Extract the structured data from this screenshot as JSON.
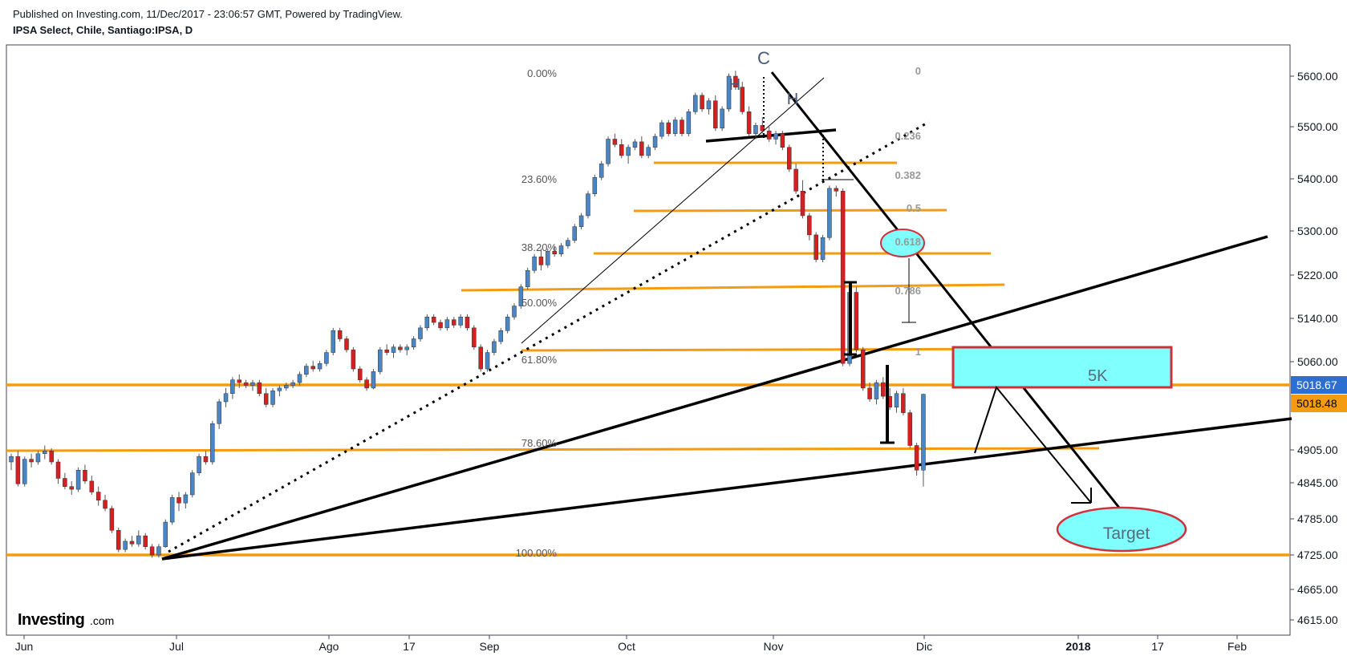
{
  "header": {
    "published": "Published on Investing.com, 11/Dec/2017 - 23:06:57 GMT, Powered by TradingView.",
    "symbol": "IPSA Select, Chile, Santiago:IPSA, D"
  },
  "brand": {
    "name": "Investing",
    "suffix": ".com"
  },
  "colors": {
    "up": "#4a86c5",
    "down": "#d42020",
    "orange": "#f39c12",
    "cyan": "#80ffff",
    "red_border": "#d0303a",
    "blue_label": "#2d6fd1",
    "orange_label": "#f39c12"
  },
  "price_axis": {
    "ticks": [
      {
        "label": "5600.00",
        "value": 5600
      },
      {
        "label": "5500.00",
        "value": 5500
      },
      {
        "label": "5400.00",
        "value": 5400
      },
      {
        "label": "5300.00",
        "value": 5300
      },
      {
        "label": "5220.00",
        "value": 5220
      },
      {
        "label": "5140.00",
        "value": 5140
      },
      {
        "label": "5060.00",
        "value": 5060
      },
      {
        "label": "4905.00",
        "value": 4905
      },
      {
        "label": "4845.00",
        "value": 4845
      },
      {
        "label": "4785.00",
        "value": 4785
      },
      {
        "label": "4725.00",
        "value": 4725
      },
      {
        "label": "4665.00",
        "value": 4665
      },
      {
        "label": "4615.00",
        "value": 4615
      }
    ],
    "last_price_label": "5018.67",
    "prev_price_label": "5018.48"
  },
  "time_axis": {
    "ticks": [
      {
        "label": "Jun",
        "bold": false
      },
      {
        "label": "Jul",
        "bold": false
      },
      {
        "label": "Ago",
        "bold": false
      },
      {
        "label": "17",
        "bold": false
      },
      {
        "label": "Sep",
        "bold": false
      },
      {
        "label": "Oct",
        "bold": false
      },
      {
        "label": "Nov",
        "bold": false
      },
      {
        "label": "Dic",
        "bold": false
      },
      {
        "label": "2018",
        "bold": true
      },
      {
        "label": "17",
        "bold": false
      },
      {
        "label": "Feb",
        "bold": false
      }
    ]
  },
  "fib_left": [
    "0.00%",
    "23.60%",
    "38.20%",
    "50.00%",
    "61.80%",
    "78.60%",
    "100.00%"
  ],
  "fib_right": [
    "0",
    "0.236",
    "0.382",
    "0.5",
    "0.618",
    "0.786",
    "1"
  ],
  "annotations": {
    "c": "C",
    "h1": "H",
    "h2": "H",
    "box": "5K",
    "target": "Target"
  },
  "chart_data": {
    "type": "candlestick",
    "title": "IPSA Select, Chile, Santiago:IPSA, D",
    "ylim": [
      4600,
      5640
    ],
    "ohlc": [
      [
        4895,
        4910,
        4880,
        4905
      ],
      [
        4905,
        4915,
        4850,
        4855
      ],
      [
        4855,
        4905,
        4850,
        4900
      ],
      [
        4900,
        4910,
        4885,
        4895
      ],
      [
        4895,
        4915,
        4890,
        4910
      ],
      [
        4910,
        4925,
        4900,
        4915
      ],
      [
        4915,
        4920,
        4890,
        4895
      ],
      [
        4895,
        4900,
        4855,
        4865
      ],
      [
        4865,
        4875,
        4845,
        4850
      ],
      [
        4850,
        4860,
        4835,
        4845
      ],
      [
        4845,
        4885,
        4840,
        4880
      ],
      [
        4880,
        4890,
        4855,
        4860
      ],
      [
        4860,
        4870,
        4835,
        4840
      ],
      [
        4840,
        4850,
        4815,
        4825
      ],
      [
        4825,
        4835,
        4805,
        4810
      ],
      [
        4810,
        4815,
        4765,
        4770
      ],
      [
        4770,
        4775,
        4730,
        4735
      ],
      [
        4735,
        4755,
        4730,
        4750
      ],
      [
        4750,
        4760,
        4740,
        4745
      ],
      [
        4745,
        4770,
        4740,
        4760
      ],
      [
        4760,
        4765,
        4735,
        4740
      ],
      [
        4740,
        4745,
        4720,
        4725
      ],
      [
        4725,
        4745,
        4720,
        4740
      ],
      [
        4740,
        4790,
        4738,
        4785
      ],
      [
        4785,
        4835,
        4780,
        4830
      ],
      [
        4830,
        4840,
        4805,
        4820
      ],
      [
        4820,
        4840,
        4810,
        4835
      ],
      [
        4835,
        4880,
        4830,
        4875
      ],
      [
        4875,
        4910,
        4870,
        4905
      ],
      [
        4905,
        4915,
        4890,
        4895
      ],
      [
        4895,
        4970,
        4890,
        4965
      ],
      [
        4965,
        5010,
        4955,
        5005
      ],
      [
        5005,
        5030,
        4995,
        5020
      ],
      [
        5020,
        5050,
        5010,
        5045
      ],
      [
        5045,
        5055,
        5030,
        5040
      ],
      [
        5040,
        5045,
        5030,
        5035
      ],
      [
        5035,
        5045,
        5025,
        5040
      ],
      [
        5040,
        5045,
        5015,
        5020
      ],
      [
        5020,
        5030,
        4995,
        5000
      ],
      [
        5000,
        5030,
        4995,
        5025
      ],
      [
        5025,
        5035,
        5015,
        5030
      ],
      [
        5030,
        5040,
        5025,
        5035
      ],
      [
        5035,
        5045,
        5030,
        5040
      ],
      [
        5040,
        5060,
        5035,
        5055
      ],
      [
        5055,
        5075,
        5050,
        5070
      ],
      [
        5070,
        5080,
        5060,
        5065
      ],
      [
        5065,
        5080,
        5060,
        5075
      ],
      [
        5075,
        5100,
        5070,
        5095
      ],
      [
        5095,
        5140,
        5090,
        5135
      ],
      [
        5135,
        5140,
        5115,
        5120
      ],
      [
        5120,
        5125,
        5095,
        5100
      ],
      [
        5100,
        5105,
        5060,
        5065
      ],
      [
        5065,
        5070,
        5040,
        5045
      ],
      [
        5045,
        5050,
        5025,
        5030
      ],
      [
        5030,
        5065,
        5028,
        5060
      ],
      [
        5060,
        5105,
        5055,
        5100
      ],
      [
        5100,
        5110,
        5090,
        5095
      ],
      [
        5095,
        5110,
        5085,
        5105
      ],
      [
        5105,
        5110,
        5095,
        5100
      ],
      [
        5100,
        5110,
        5090,
        5105
      ],
      [
        5105,
        5125,
        5100,
        5120
      ],
      [
        5120,
        5145,
        5115,
        5140
      ],
      [
        5140,
        5165,
        5135,
        5160
      ],
      [
        5160,
        5165,
        5145,
        5150
      ],
      [
        5150,
        5155,
        5135,
        5140
      ],
      [
        5140,
        5160,
        5135,
        5155
      ],
      [
        5155,
        5160,
        5140,
        5145
      ],
      [
        5145,
        5165,
        5140,
        5160
      ],
      [
        5160,
        5165,
        5135,
        5140
      ],
      [
        5140,
        5145,
        5100,
        5105
      ],
      [
        5105,
        5110,
        5060,
        5065
      ],
      [
        5065,
        5100,
        5060,
        5095
      ],
      [
        5095,
        5120,
        5090,
        5115
      ],
      [
        5115,
        5140,
        5110,
        5135
      ],
      [
        5135,
        5165,
        5130,
        5160
      ],
      [
        5160,
        5185,
        5155,
        5180
      ],
      [
        5180,
        5220,
        5175,
        5215
      ],
      [
        5215,
        5250,
        5210,
        5245
      ],
      [
        5245,
        5275,
        5240,
        5270
      ],
      [
        5270,
        5285,
        5245,
        5255
      ],
      [
        5255,
        5285,
        5250,
        5280
      ],
      [
        5280,
        5290,
        5270,
        5275
      ],
      [
        5275,
        5295,
        5270,
        5290
      ],
      [
        5290,
        5305,
        5285,
        5300
      ],
      [
        5300,
        5330,
        5295,
        5325
      ],
      [
        5325,
        5350,
        5320,
        5345
      ],
      [
        5345,
        5390,
        5340,
        5385
      ],
      [
        5385,
        5420,
        5380,
        5415
      ],
      [
        5415,
        5445,
        5410,
        5440
      ],
      [
        5440,
        5490,
        5435,
        5485
      ],
      [
        5485,
        5495,
        5470,
        5475
      ],
      [
        5475,
        5485,
        5450,
        5455
      ],
      [
        5455,
        5475,
        5440,
        5470
      ],
      [
        5470,
        5485,
        5465,
        5480
      ],
      [
        5480,
        5490,
        5450,
        5455
      ],
      [
        5455,
        5475,
        5450,
        5470
      ],
      [
        5470,
        5495,
        5465,
        5490
      ],
      [
        5490,
        5520,
        5485,
        5515
      ],
      [
        5515,
        5520,
        5490,
        5495
      ],
      [
        5495,
        5525,
        5490,
        5520
      ],
      [
        5520,
        5525,
        5490,
        5495
      ],
      [
        5495,
        5540,
        5490,
        5535
      ],
      [
        5535,
        5570,
        5530,
        5565
      ],
      [
        5565,
        5570,
        5535,
        5540
      ],
      [
        5540,
        5560,
        5530,
        5555
      ],
      [
        5555,
        5565,
        5500,
        5505
      ],
      [
        5505,
        5545,
        5500,
        5540
      ],
      [
        5540,
        5605,
        5535,
        5600
      ],
      [
        5600,
        5610,
        5575,
        5580
      ],
      [
        5580,
        5590,
        5530,
        5535
      ],
      [
        5535,
        5545,
        5490,
        5495
      ],
      [
        5495,
        5515,
        5485,
        5510
      ],
      [
        5510,
        5525,
        5495,
        5500
      ],
      [
        5500,
        5510,
        5480,
        5485
      ],
      [
        5485,
        5500,
        5475,
        5495
      ],
      [
        5495,
        5500,
        5465,
        5470
      ],
      [
        5470,
        5475,
        5425,
        5430
      ],
      [
        5430,
        5440,
        5385,
        5390
      ],
      [
        5390,
        5410,
        5340,
        5345
      ],
      [
        5345,
        5350,
        5300,
        5310
      ],
      [
        5310,
        5315,
        5260,
        5265
      ],
      [
        5265,
        5310,
        5260,
        5305
      ],
      [
        5305,
        5400,
        5300,
        5395
      ],
      [
        5395,
        5400,
        5380,
        5390
      ],
      [
        5390,
        5395,
        5070,
        5075
      ],
      [
        5075,
        5210,
        5070,
        5205
      ],
      [
        5205,
        5215,
        5095,
        5100
      ],
      [
        5100,
        5105,
        5025,
        5030
      ],
      [
        5030,
        5040,
        5005,
        5010
      ],
      [
        5010,
        5045,
        5000,
        5040
      ],
      [
        5040,
        5050,
        5010,
        5015
      ],
      [
        5015,
        5030,
        4990,
        4995
      ],
      [
        4995,
        5025,
        4985,
        5020
      ],
      [
        5020,
        5030,
        4980,
        4985
      ],
      [
        4985,
        4990,
        4920,
        4925
      ],
      [
        4925,
        4930,
        4870,
        4880
      ],
      [
        4880,
        5020,
        4850,
        5018.67
      ]
    ]
  }
}
